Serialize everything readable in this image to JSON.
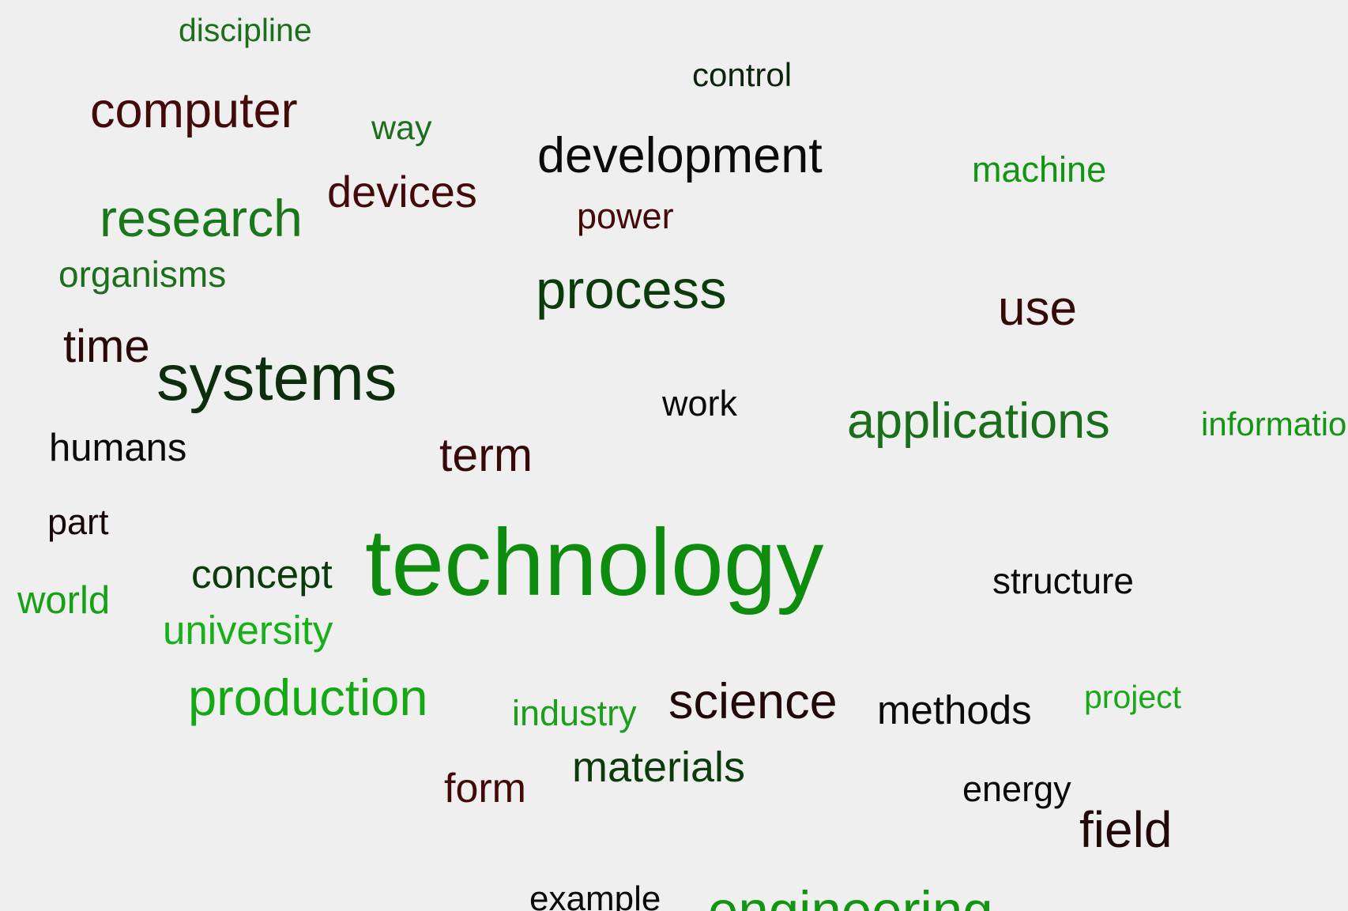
{
  "words": [
    {
      "text": "discipline",
      "color": "#1d6e1d"
    },
    {
      "text": "control",
      "color": "#0b240b"
    },
    {
      "text": "computer",
      "color": "#440a0a"
    },
    {
      "text": "way",
      "color": "#1d6e1d"
    },
    {
      "text": "development",
      "color": "#0a0a0a"
    },
    {
      "text": "machine",
      "color": "#129612"
    },
    {
      "text": "devices",
      "color": "#440a0a"
    },
    {
      "text": "power",
      "color": "#440a0a"
    },
    {
      "text": "research",
      "color": "#1a781a"
    },
    {
      "text": "organisms",
      "color": "#1d6e1d"
    },
    {
      "text": "process",
      "color": "#0b3a0b"
    },
    {
      "text": "use",
      "color": "#370a0a"
    },
    {
      "text": "time",
      "color": "#2a0808"
    },
    {
      "text": "systems",
      "color": "#0c2e0c"
    },
    {
      "text": "work",
      "color": "#0a0a0a"
    },
    {
      "text": "applications",
      "color": "#1a6e1a"
    },
    {
      "text": "information",
      "color": "#129612"
    },
    {
      "text": "humans",
      "color": "#0a0a0a"
    },
    {
      "text": "term",
      "color": "#370a0a"
    },
    {
      "text": "part",
      "color": "#160808"
    },
    {
      "text": "technology",
      "color": "#0e8c0e"
    },
    {
      "text": "concept",
      "color": "#0b3a0b"
    },
    {
      "text": "structure",
      "color": "#0a0a0a"
    },
    {
      "text": "world",
      "color": "#15a015"
    },
    {
      "text": "university",
      "color": "#18b018"
    },
    {
      "text": "production",
      "color": "#15a815"
    },
    {
      "text": "industry",
      "color": "#1aa01a"
    },
    {
      "text": "science",
      "color": "#220808"
    },
    {
      "text": "methods",
      "color": "#0a0a0a"
    },
    {
      "text": "project",
      "color": "#1aa81a"
    },
    {
      "text": "materials",
      "color": "#0b3a0b"
    },
    {
      "text": "form",
      "color": "#440a0a"
    },
    {
      "text": "energy",
      "color": "#0a0a0a"
    },
    {
      "text": "field",
      "color": "#220808"
    },
    {
      "text": "example",
      "color": "#0a0a0a"
    },
    {
      "text": "engineering",
      "color": "#129612"
    }
  ]
}
